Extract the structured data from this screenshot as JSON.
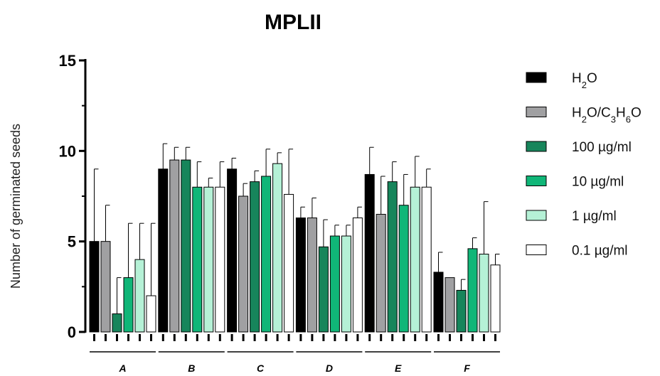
{
  "chart_data": {
    "type": "bar",
    "title": "MPLII",
    "xlabel": "",
    "ylabel": "Number of germinated seeds",
    "ylim": [
      0,
      15
    ],
    "yticks": [
      0,
      5,
      10,
      15
    ],
    "grid": false,
    "legend_position": "right",
    "categories": [
      "A",
      "B",
      "C",
      "D",
      "E",
      "F"
    ],
    "series": [
      {
        "name": "H2O",
        "name_parts": [
          [
            "H",
            ""
          ],
          [
            "2",
            "sub"
          ],
          [
            "O",
            ""
          ]
        ],
        "fill": "#000000",
        "values": [
          5.0,
          9.0,
          9.0,
          6.3,
          8.7,
          3.3
        ],
        "errors": [
          4.0,
          1.4,
          0.6,
          0.6,
          1.5,
          1.1
        ]
      },
      {
        "name": "H2O/C3H6O",
        "name_parts": [
          [
            "H",
            ""
          ],
          [
            "2",
            "sub"
          ],
          [
            "O/C",
            ""
          ],
          [
            "3",
            "sub"
          ],
          [
            "H",
            ""
          ],
          [
            "6",
            "sub"
          ],
          [
            "O",
            ""
          ]
        ],
        "fill": "#a0a0a2",
        "values": [
          5.0,
          9.5,
          7.5,
          6.3,
          6.5,
          3.0
        ],
        "errors": [
          2.0,
          0.7,
          0.7,
          1.1,
          2.1,
          0.0
        ]
      },
      {
        "name": "100 µg/ml",
        "name_parts": [
          [
            "100 µg/ml",
            ""
          ]
        ],
        "fill": "#17855b",
        "values": [
          1.0,
          9.5,
          8.3,
          4.7,
          8.3,
          2.3
        ],
        "errors": [
          2.0,
          0.7,
          0.6,
          1.5,
          1.1,
          0.6
        ]
      },
      {
        "name": "10 µg/ml",
        "name_parts": [
          [
            "10 µg/ml",
            ""
          ]
        ],
        "fill": "#10b678",
        "values": [
          3.0,
          8.0,
          8.6,
          5.3,
          7.0,
          4.6
        ],
        "errors": [
          3.0,
          1.4,
          1.5,
          0.6,
          1.7,
          0.6
        ]
      },
      {
        "name": "1 µg/ml",
        "name_parts": [
          [
            "1 µg/ml",
            ""
          ]
        ],
        "fill": "#b5f1d6",
        "values": [
          4.0,
          8.0,
          9.3,
          5.3,
          8.0,
          4.3
        ],
        "errors": [
          2.0,
          0.5,
          0.6,
          0.6,
          1.7,
          2.9
        ]
      },
      {
        "name": "0.1 µg/ml",
        "name_parts": [
          [
            "0.1 µg/ml",
            ""
          ]
        ],
        "fill": "#ffffff",
        "values": [
          2.0,
          8.0,
          7.6,
          6.3,
          8.0,
          3.7
        ],
        "errors": [
          4.0,
          1.4,
          2.5,
          0.6,
          1.0,
          0.6
        ]
      }
    ]
  }
}
